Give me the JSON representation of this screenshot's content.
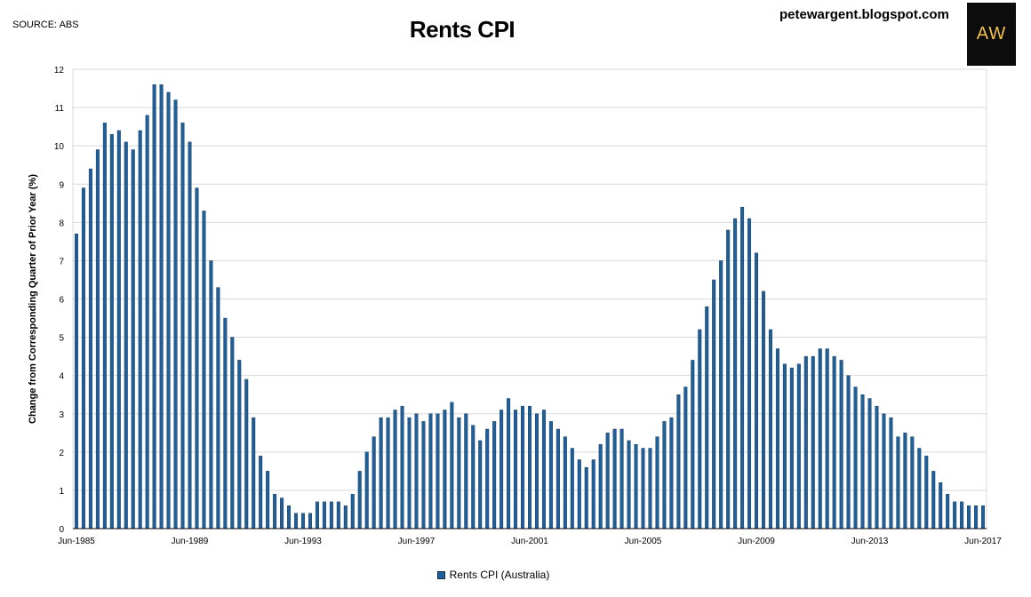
{
  "header": {
    "source": "SOURCE: ABS",
    "site": "petewargent.blogspot.com",
    "logo_text": "AW"
  },
  "chart_data": {
    "type": "bar",
    "title": "Rents CPI",
    "ylabel": "Change from Corresponding Quarter of Prior Year (%)",
    "xlabel": "",
    "ylim": [
      0,
      12
    ],
    "yticks": [
      0,
      1,
      2,
      3,
      4,
      5,
      6,
      7,
      8,
      9,
      10,
      11,
      12
    ],
    "grid": true,
    "legend_position": "bottom",
    "bar_color": "#1f5f9a",
    "x_tick_labels": [
      {
        "index": 0,
        "label": "Jun-1985"
      },
      {
        "index": 16,
        "label": "Jun-1989"
      },
      {
        "index": 32,
        "label": "Jun-1993"
      },
      {
        "index": 48,
        "label": "Jun-1997"
      },
      {
        "index": 64,
        "label": "Jun-2001"
      },
      {
        "index": 80,
        "label": "Jun-2005"
      },
      {
        "index": 96,
        "label": "Jun-2009"
      },
      {
        "index": 112,
        "label": "Jun-2013"
      },
      {
        "index": 128,
        "label": "Jun-2017"
      }
    ],
    "series": [
      {
        "name": "Rents CPI (Australia)",
        "start": "Jun-1985",
        "frequency": "quarterly",
        "values": [
          7.7,
          8.9,
          9.4,
          9.9,
          10.6,
          10.3,
          10.4,
          10.1,
          9.9,
          10.4,
          10.8,
          11.6,
          11.6,
          11.4,
          11.2,
          10.6,
          10.1,
          8.9,
          8.3,
          7.0,
          6.3,
          5.5,
          5.0,
          4.4,
          3.9,
          2.9,
          1.9,
          1.5,
          0.9,
          0.8,
          0.6,
          0.4,
          0.4,
          0.4,
          0.7,
          0.7,
          0.7,
          0.7,
          0.6,
          0.9,
          1.5,
          2.0,
          2.4,
          2.9,
          2.9,
          3.1,
          3.2,
          2.9,
          3.0,
          2.8,
          3.0,
          3.0,
          3.1,
          3.3,
          2.9,
          3.0,
          2.7,
          2.3,
          2.6,
          2.8,
          3.1,
          3.4,
          3.1,
          3.2,
          3.2,
          3.0,
          3.1,
          2.8,
          2.6,
          2.4,
          2.1,
          1.8,
          1.6,
          1.8,
          2.2,
          2.5,
          2.6,
          2.6,
          2.3,
          2.2,
          2.1,
          2.1,
          2.4,
          2.8,
          2.9,
          3.5,
          3.7,
          4.4,
          5.2,
          5.8,
          6.5,
          7.0,
          7.8,
          8.1,
          8.4,
          8.1,
          7.2,
          6.2,
          5.2,
          4.7,
          4.3,
          4.2,
          4.3,
          4.5,
          4.5,
          4.7,
          4.7,
          4.5,
          4.4,
          4.0,
          3.7,
          3.5,
          3.4,
          3.2,
          3.0,
          2.9,
          2.4,
          2.5,
          2.4,
          2.1,
          1.9,
          1.5,
          1.2,
          0.9,
          0.7,
          0.7,
          0.6,
          0.6,
          0.6
        ]
      }
    ]
  }
}
